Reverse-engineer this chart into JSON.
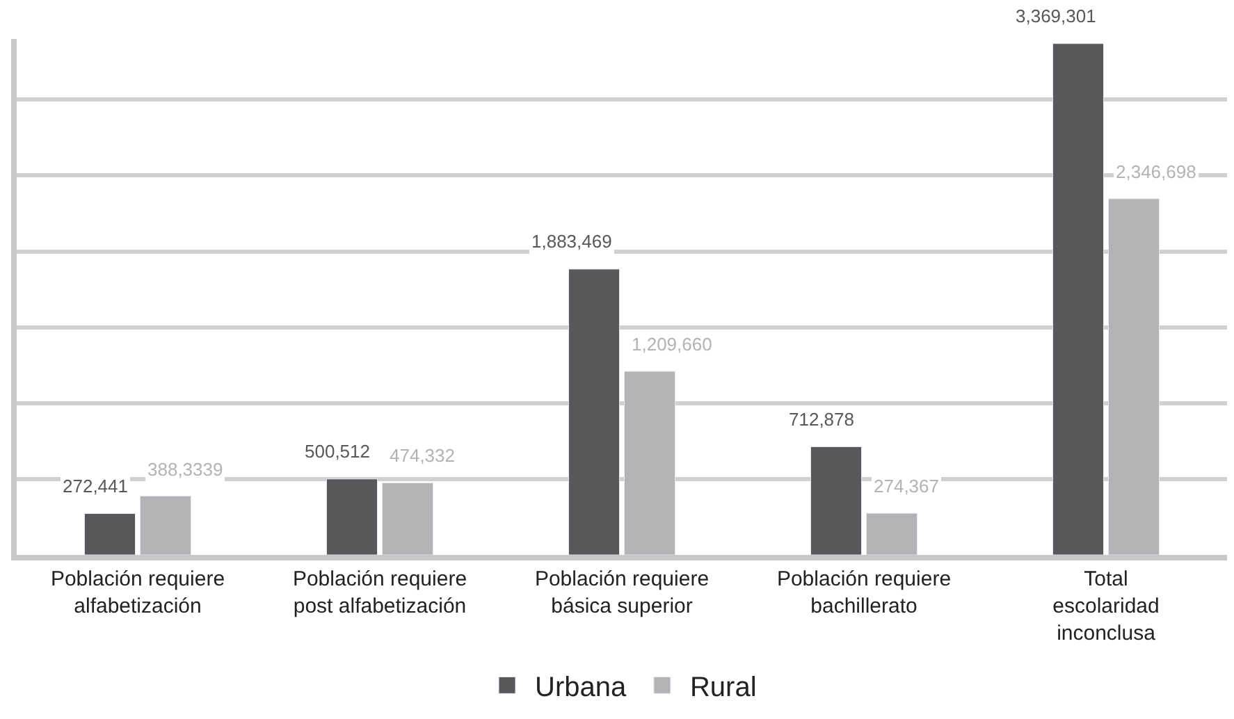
{
  "chart_data": {
    "type": "bar",
    "categories": [
      "Población requiere\nalfabetización",
      "Población requiere\npost alfabetización",
      "Población requiere\nbásica superior",
      "Población requiere\nbachillerato",
      "Total\nescolaridad\ninconclusa"
    ],
    "series": [
      {
        "name": "Urbana",
        "color": "#58585a",
        "values": [
          272441,
          500512,
          1883469,
          712878,
          3369301
        ],
        "value_labels": [
          "272,441",
          "500,512",
          "1,883,469",
          "712,878",
          "3,369,301"
        ]
      },
      {
        "name": "Rural",
        "color": "#b3b3b5",
        "values": [
          388333,
          474332,
          1209660,
          274367,
          2346698
        ],
        "value_labels": [
          "388,3339",
          "474,332",
          "1,209,660",
          "274,367",
          "2,346,698"
        ]
      }
    ],
    "ylim": [
      0,
      3400000
    ],
    "tick_labels": "x",
    "grid": "y",
    "legend": "bottom"
  }
}
